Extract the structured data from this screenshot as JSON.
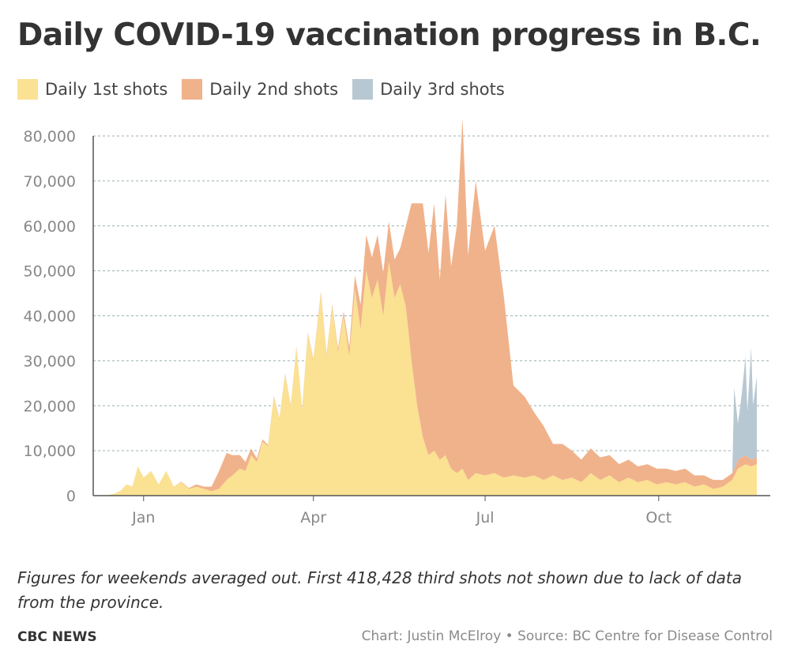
{
  "header": {
    "title": "Daily COVID-19 vaccination progress in B.C."
  },
  "colors": {
    "first": "#fbe192",
    "second": "#f0b28b",
    "third": "#b8c8d3",
    "grid": "#9bb0ae",
    "axis": "#555555"
  },
  "footer": {
    "note": "Figures for weekends averaged out. First 418,428 third shots not shown due to lack of data from the province.",
    "brand": "CBC NEWS",
    "credit": "Chart: Justin McElroy • Source: BC Centre for Disease Control"
  },
  "chart_data": {
    "type": "area",
    "stacked": true,
    "title": "Daily COVID-19 vaccination progress in B.C.",
    "xlabel": "",
    "ylabel": "",
    "ylim": [
      0,
      80000
    ],
    "grid": true,
    "legend_position": "top-left",
    "y_ticks": [
      {
        "value": 0,
        "label": "0"
      },
      {
        "value": 10000,
        "label": "10,000"
      },
      {
        "value": 20000,
        "label": "20,000"
      },
      {
        "value": 30000,
        "label": "30,000"
      },
      {
        "value": 40000,
        "label": "40,000"
      },
      {
        "value": 50000,
        "label": "50,000"
      },
      {
        "value": 60000,
        "label": "60,000"
      },
      {
        "value": 70000,
        "label": "70,000"
      },
      {
        "value": 80000,
        "label": "80,000"
      }
    ],
    "x_ticks": [
      {
        "date": "2021-01-15",
        "label": "Jan"
      },
      {
        "date": "2021-04-15",
        "label": "Apr"
      },
      {
        "date": "2021-07-15",
        "label": "Jul"
      },
      {
        "date": "2021-10-15",
        "label": "Oct"
      }
    ],
    "x_range": [
      "2020-12-26",
      "2021-12-06"
    ],
    "series": [
      {
        "name": "Daily 1st shots",
        "color": "#fbe192",
        "points": [
          [
            "2020-12-26",
            0
          ],
          [
            "2020-12-31",
            500
          ],
          [
            "2021-01-03",
            1200
          ],
          [
            "2021-01-06",
            2500
          ],
          [
            "2021-01-09",
            2000
          ],
          [
            "2021-01-12",
            6500
          ],
          [
            "2021-01-15",
            4000
          ],
          [
            "2021-01-19",
            5500
          ],
          [
            "2021-01-23",
            2500
          ],
          [
            "2021-01-27",
            5500
          ],
          [
            "2021-01-31",
            2000
          ],
          [
            "2021-02-04",
            3000
          ],
          [
            "2021-02-08",
            1500
          ],
          [
            "2021-02-12",
            2000
          ],
          [
            "2021-02-16",
            1500
          ],
          [
            "2021-02-20",
            1000
          ],
          [
            "2021-02-24",
            1500
          ],
          [
            "2021-02-28",
            3500
          ],
          [
            "2021-03-03",
            4500
          ],
          [
            "2021-03-07",
            6000
          ],
          [
            "2021-03-10",
            5500
          ],
          [
            "2021-03-13",
            9000
          ],
          [
            "2021-03-16",
            7500
          ],
          [
            "2021-03-19",
            12000
          ],
          [
            "2021-03-22",
            11000
          ],
          [
            "2021-03-25",
            22000
          ],
          [
            "2021-03-28",
            17000
          ],
          [
            "2021-03-31",
            27000
          ],
          [
            "2021-04-03",
            20000
          ],
          [
            "2021-04-06",
            33000
          ],
          [
            "2021-04-09",
            19000
          ],
          [
            "2021-04-12",
            36000
          ],
          [
            "2021-04-15",
            30000
          ],
          [
            "2021-04-19",
            45000
          ],
          [
            "2021-04-22",
            31000
          ],
          [
            "2021-04-25",
            42000
          ],
          [
            "2021-04-28",
            32000
          ],
          [
            "2021-05-01",
            40000
          ],
          [
            "2021-05-04",
            31000
          ],
          [
            "2021-05-07",
            46000
          ],
          [
            "2021-05-10",
            37000
          ],
          [
            "2021-05-13",
            50000
          ],
          [
            "2021-05-16",
            44000
          ],
          [
            "2021-05-19",
            48000
          ],
          [
            "2021-05-22",
            40000
          ],
          [
            "2021-05-25",
            52000
          ],
          [
            "2021-05-28",
            44000
          ],
          [
            "2021-05-31",
            47000
          ],
          [
            "2021-06-03",
            42000
          ],
          [
            "2021-06-06",
            30000
          ],
          [
            "2021-06-09",
            20000
          ],
          [
            "2021-06-12",
            13000
          ],
          [
            "2021-06-15",
            9000
          ],
          [
            "2021-06-18",
            10000
          ],
          [
            "2021-06-21",
            8000
          ],
          [
            "2021-06-24",
            9000
          ],
          [
            "2021-06-27",
            6000
          ],
          [
            "2021-06-30",
            5000
          ],
          [
            "2021-07-03",
            6000
          ],
          [
            "2021-07-06",
            3500
          ],
          [
            "2021-07-10",
            5000
          ],
          [
            "2021-07-15",
            4500
          ],
          [
            "2021-07-20",
            5000
          ],
          [
            "2021-07-25",
            4000
          ],
          [
            "2021-07-30",
            4500
          ],
          [
            "2021-08-05",
            4000
          ],
          [
            "2021-08-10",
            4500
          ],
          [
            "2021-08-15",
            3500
          ],
          [
            "2021-08-20",
            4500
          ],
          [
            "2021-08-25",
            3500
          ],
          [
            "2021-08-30",
            4000
          ],
          [
            "2021-09-04",
            3000
          ],
          [
            "2021-09-09",
            5000
          ],
          [
            "2021-09-14",
            3500
          ],
          [
            "2021-09-19",
            4500
          ],
          [
            "2021-09-24",
            3000
          ],
          [
            "2021-09-29",
            4000
          ],
          [
            "2021-10-04",
            3000
          ],
          [
            "2021-10-09",
            3500
          ],
          [
            "2021-10-14",
            2500
          ],
          [
            "2021-10-19",
            3000
          ],
          [
            "2021-10-24",
            2500
          ],
          [
            "2021-10-29",
            3000
          ],
          [
            "2021-11-03",
            2000
          ],
          [
            "2021-11-08",
            2500
          ],
          [
            "2021-11-13",
            1500
          ],
          [
            "2021-11-18",
            2000
          ],
          [
            "2021-11-23",
            3500
          ],
          [
            "2021-11-26",
            6000
          ],
          [
            "2021-11-30",
            7000
          ],
          [
            "2021-12-03",
            6500
          ],
          [
            "2021-12-06",
            7000
          ]
        ]
      },
      {
        "name": "Daily 2nd shots",
        "color": "#f0b28b",
        "points": [
          [
            "2020-12-26",
            0
          ],
          [
            "2021-01-31",
            0
          ],
          [
            "2021-02-08",
            200
          ],
          [
            "2021-02-12",
            500
          ],
          [
            "2021-02-16",
            500
          ],
          [
            "2021-02-20",
            1000
          ],
          [
            "2021-02-24",
            4000
          ],
          [
            "2021-02-28",
            6000
          ],
          [
            "2021-03-03",
            4500
          ],
          [
            "2021-03-07",
            3000
          ],
          [
            "2021-03-10",
            2000
          ],
          [
            "2021-03-13",
            1500
          ],
          [
            "2021-03-16",
            800
          ],
          [
            "2021-03-19",
            500
          ],
          [
            "2021-03-22",
            300
          ],
          [
            "2021-03-25",
            200
          ],
          [
            "2021-04-06",
            200
          ],
          [
            "2021-04-25",
            500
          ],
          [
            "2021-05-01",
            1000
          ],
          [
            "2021-05-07",
            3000
          ],
          [
            "2021-05-13",
            8000
          ],
          [
            "2021-05-19",
            10000
          ],
          [
            "2021-05-25",
            9000
          ],
          [
            "2021-05-31",
            8000
          ],
          [
            "2021-06-03",
            18000
          ],
          [
            "2021-06-06",
            35000
          ],
          [
            "2021-06-09",
            45000
          ],
          [
            "2021-06-12",
            52000
          ],
          [
            "2021-06-15",
            45000
          ],
          [
            "2021-06-18",
            55000
          ],
          [
            "2021-06-21",
            40000
          ],
          [
            "2021-06-24",
            58000
          ],
          [
            "2021-06-27",
            45000
          ],
          [
            "2021-06-30",
            55000
          ],
          [
            "2021-07-03",
            78000
          ],
          [
            "2021-07-06",
            50000
          ],
          [
            "2021-07-10",
            65000
          ],
          [
            "2021-07-15",
            50000
          ],
          [
            "2021-07-20",
            55000
          ],
          [
            "2021-07-25",
            40000
          ],
          [
            "2021-07-30",
            20000
          ],
          [
            "2021-08-05",
            18000
          ],
          [
            "2021-08-10",
            14000
          ],
          [
            "2021-08-15",
            12000
          ],
          [
            "2021-08-20",
            7000
          ],
          [
            "2021-08-25",
            8000
          ],
          [
            "2021-08-30",
            6000
          ],
          [
            "2021-09-04",
            5000
          ],
          [
            "2021-09-09",
            5500
          ],
          [
            "2021-09-14",
            5000
          ],
          [
            "2021-09-19",
            4500
          ],
          [
            "2021-09-24",
            4000
          ],
          [
            "2021-09-29",
            4000
          ],
          [
            "2021-10-04",
            3500
          ],
          [
            "2021-10-09",
            3500
          ],
          [
            "2021-10-14",
            3500
          ],
          [
            "2021-10-19",
            3000
          ],
          [
            "2021-10-24",
            3000
          ],
          [
            "2021-10-29",
            3000
          ],
          [
            "2021-11-03",
            2500
          ],
          [
            "2021-11-08",
            2000
          ],
          [
            "2021-11-13",
            2000
          ],
          [
            "2021-11-18",
            1500
          ],
          [
            "2021-11-23",
            1500
          ],
          [
            "2021-11-26",
            2000
          ],
          [
            "2021-11-30",
            2000
          ],
          [
            "2021-12-03",
            1500
          ],
          [
            "2021-12-06",
            1500
          ]
        ]
      },
      {
        "name": "Daily 3rd shots",
        "color": "#b8c8d3",
        "points": [
          [
            "2020-12-26",
            0
          ],
          [
            "2021-11-23",
            0
          ],
          [
            "2021-11-24",
            18000
          ],
          [
            "2021-11-26",
            8000
          ],
          [
            "2021-11-28",
            14000
          ],
          [
            "2021-11-30",
            22000
          ],
          [
            "2021-12-01",
            10000
          ],
          [
            "2021-12-03",
            25000
          ],
          [
            "2021-12-04",
            12000
          ],
          [
            "2021-12-06",
            18000
          ]
        ]
      }
    ]
  }
}
